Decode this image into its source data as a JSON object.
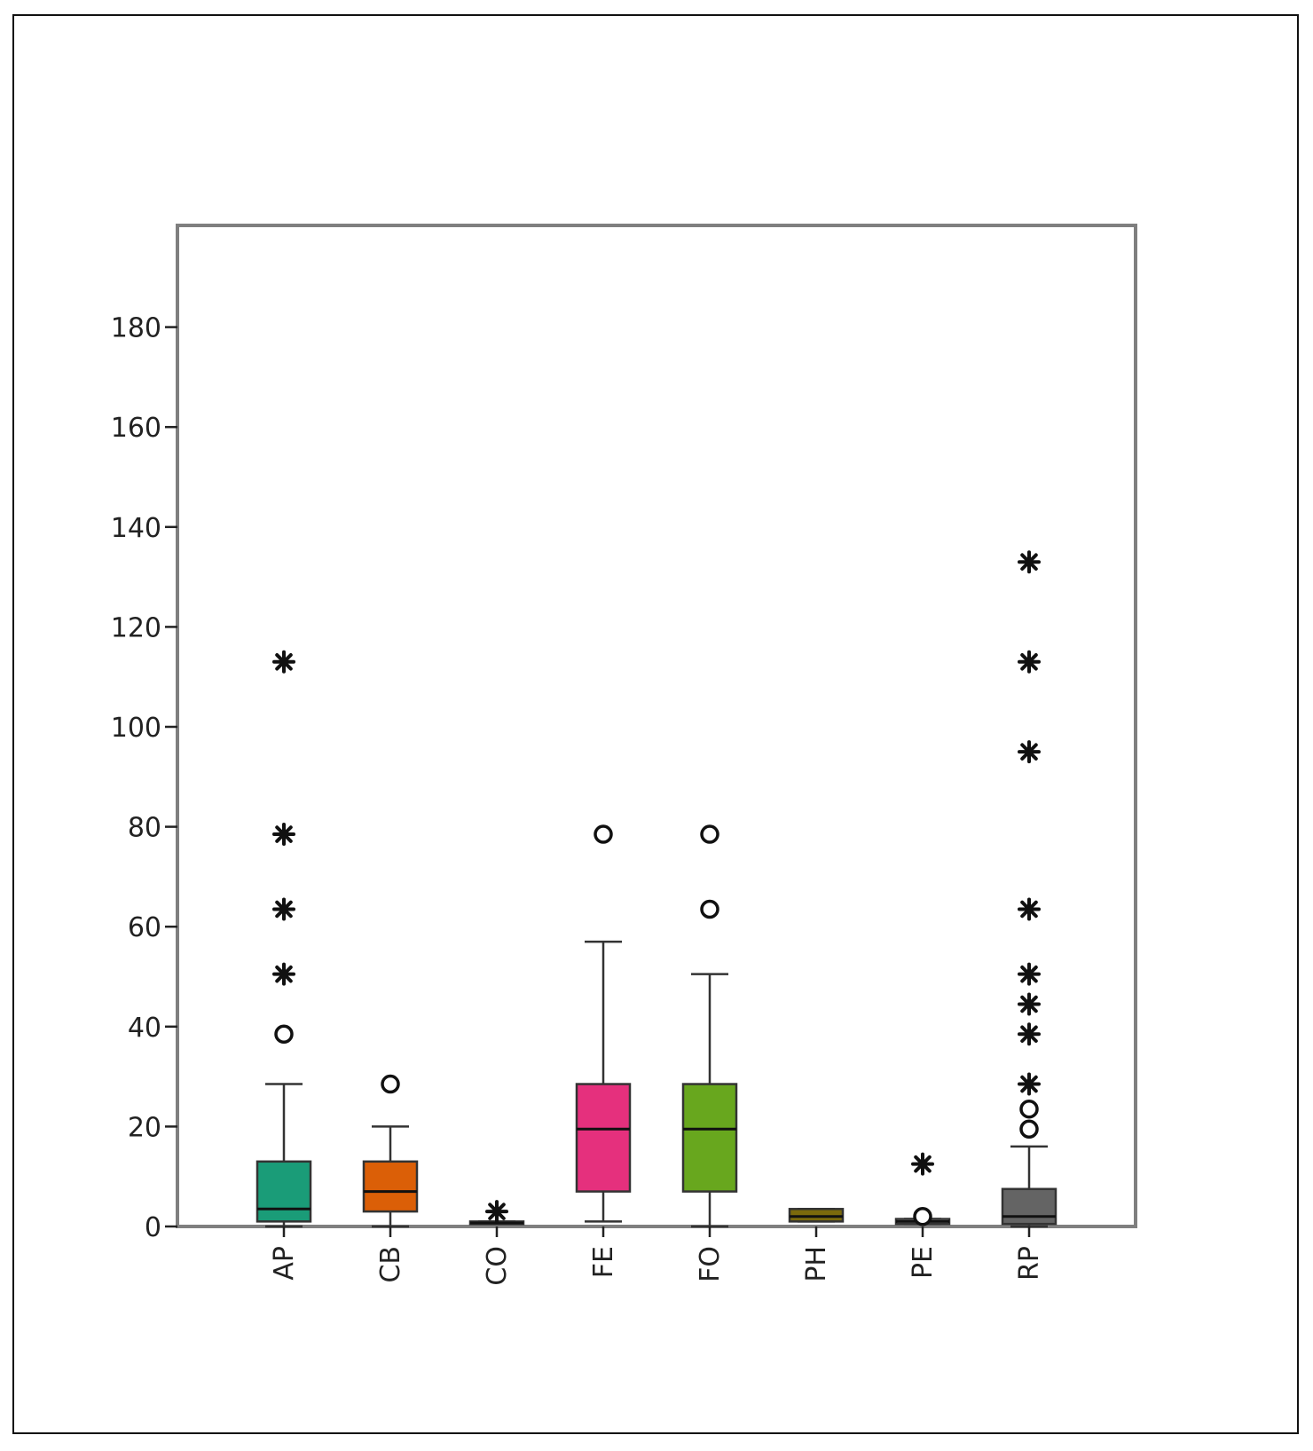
{
  "chart_data": {
    "type": "boxplot",
    "ylim": [
      0,
      200
    ],
    "yticks": [
      0,
      20,
      40,
      60,
      80,
      100,
      120,
      140,
      160,
      180
    ],
    "categories": [
      "AP",
      "CB",
      "CO",
      "FE",
      "FO",
      "PH",
      "PE",
      "RP"
    ],
    "boxes": [
      {
        "label": "AP",
        "color": "#1a9c78",
        "q1": 1,
        "median": 3.5,
        "q3": 13,
        "whisker_low": 0,
        "whisker_high": 28.5,
        "outliers_circle": [
          38.5
        ],
        "outliers_star": [
          50.5,
          63.5,
          78.5,
          113
        ]
      },
      {
        "label": "CB",
        "color": "#db5f07",
        "q1": 3,
        "median": 7,
        "q3": 13,
        "whisker_low": 0,
        "whisker_high": 20,
        "outliers_circle": [
          28.5
        ],
        "outliers_star": []
      },
      {
        "label": "CO",
        "color": "#e8e8e8",
        "q1": 0.5,
        "median": 0.7,
        "q3": 1,
        "whisker_low": 0.5,
        "whisker_high": 1,
        "outliers_circle": [],
        "outliers_star": [
          3
        ]
      },
      {
        "label": "FE",
        "color": "#e5307d",
        "q1": 7,
        "median": 19.5,
        "q3": 28.5,
        "whisker_low": 1,
        "whisker_high": 57,
        "outliers_circle": [
          78.5
        ],
        "outliers_star": []
      },
      {
        "label": "FO",
        "color": "#68a71e",
        "q1": 7,
        "median": 19.5,
        "q3": 28.5,
        "whisker_low": 0,
        "whisker_high": 50.5,
        "outliers_circle": [
          63.5,
          78.5
        ],
        "outliers_star": []
      },
      {
        "label": "PH",
        "color": "#7b6a0c",
        "q1": 1,
        "median": 2,
        "q3": 3.5,
        "whisker_low": 1,
        "whisker_high": 3.5,
        "outliers_circle": [],
        "outliers_star": []
      },
      {
        "label": "PE",
        "color": "#d9d9d9",
        "q1": 0.5,
        "median": 1,
        "q3": 1.5,
        "whisker_low": 0.5,
        "whisker_high": 1.5,
        "outliers_circle": [
          2
        ],
        "outliers_star": [
          12.5
        ]
      },
      {
        "label": "RP",
        "color": "#646464",
        "q1": 0.5,
        "median": 2,
        "q3": 7.5,
        "whisker_low": 0,
        "whisker_high": 16,
        "outliers_circle": [
          19.5,
          23.5
        ],
        "outliers_star": [
          28.5,
          38.5,
          44.5,
          50.5,
          63.5,
          95,
          113,
          133
        ]
      }
    ]
  }
}
